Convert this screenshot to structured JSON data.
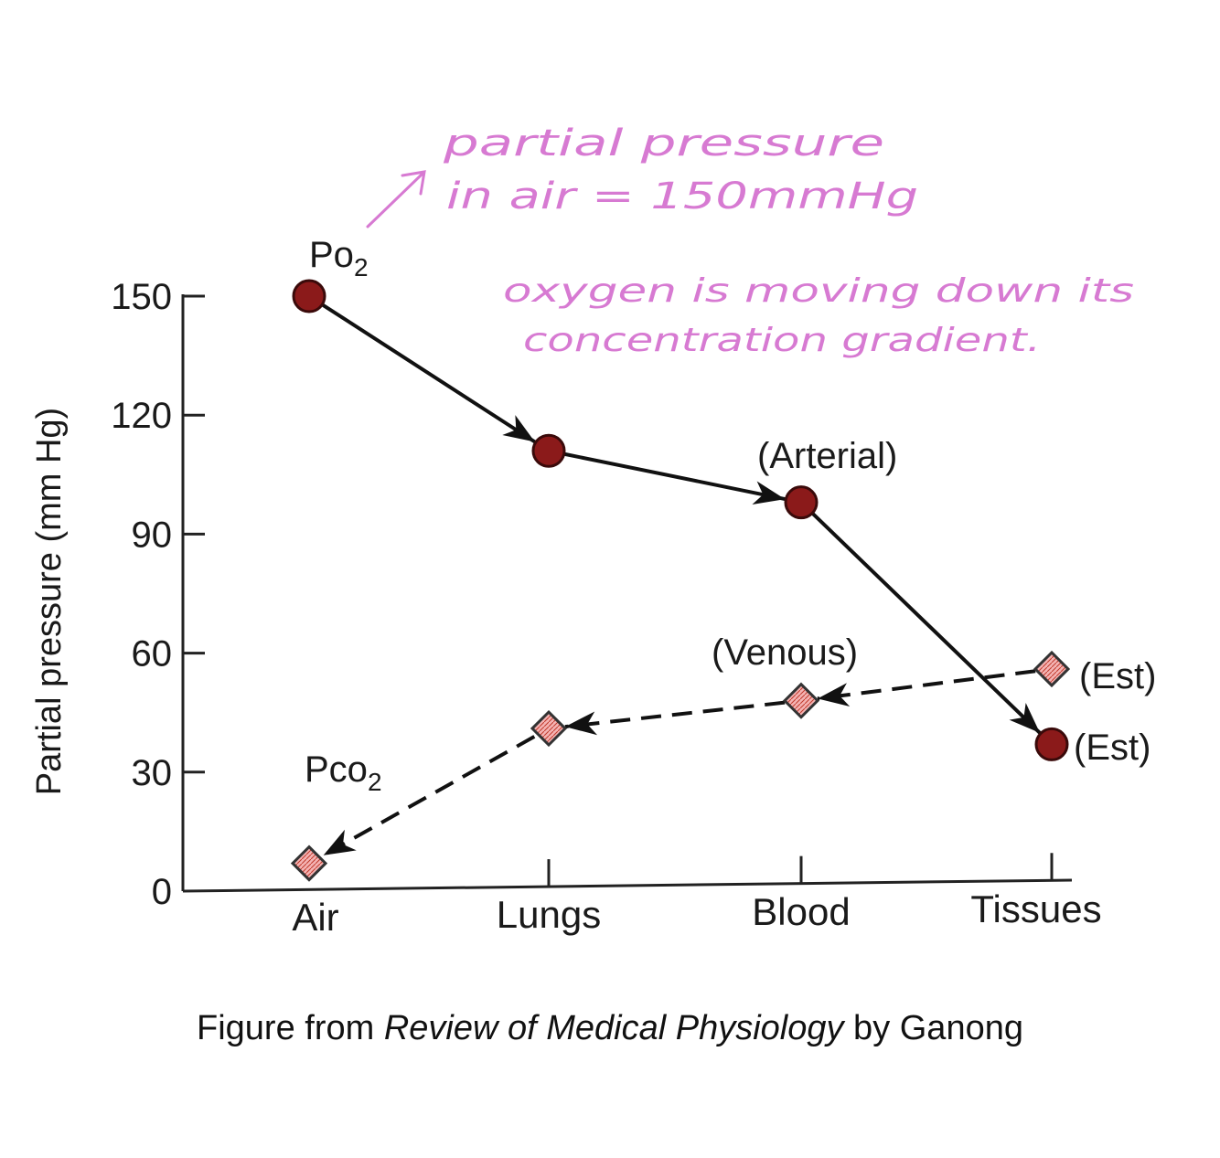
{
  "chart_data": {
    "type": "line",
    "categories": [
      "Air",
      "Lungs",
      "Blood",
      "Tissues"
    ],
    "ylabel": "Partial pressure (mm Hg)",
    "ylim": [
      0,
      150
    ],
    "yticks": [
      "0",
      "30",
      "60",
      "90",
      "120",
      "150"
    ],
    "series": [
      {
        "name": "Po2",
        "label_main": "Po",
        "label_sub": "2",
        "values": [
          150,
          111,
          98,
          37
        ],
        "line_style": "solid",
        "marker": "circle",
        "marker_color": "#8b1a1a"
      },
      {
        "name": "Pco2",
        "label_main": "Pco",
        "label_sub": "2",
        "values": [
          7,
          41,
          48,
          56
        ],
        "line_style": "dashed",
        "marker": "diamond",
        "marker_color": "#f2a7a7"
      }
    ],
    "annotations": {
      "arterial": "(Arterial)",
      "venous": "(Venous)",
      "est_upper": "(Est)",
      "est_lower": "(Est)"
    }
  },
  "handwritten": {
    "note1_line1": "partial pressure",
    "note1_line2": "in air = 150mmHg",
    "note2_line1": "oxygen is moving down its",
    "note2_line2": "concentration gradient.",
    "ink_color": "#d77ad2"
  },
  "caption": {
    "prefix": "Figure from ",
    "title": "Review of Medical Physiology",
    "suffix": " by Ganong"
  }
}
